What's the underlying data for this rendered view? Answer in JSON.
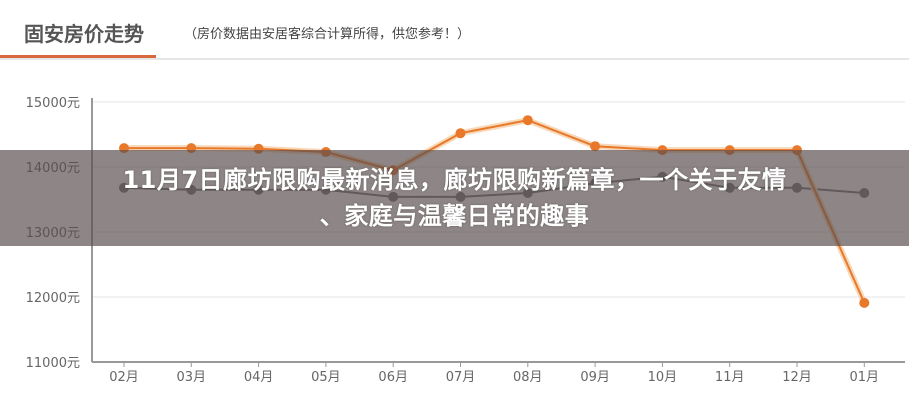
{
  "header": {
    "title": "固安房价走势",
    "subtitle": "（房价数据由安居客综合计算所得，供您参考！）"
  },
  "overlay": {
    "line1": "11月7日廊坊限购最新消息，廊坊限购新篇章，一个关于友情",
    "line2": "、家庭与温馨日常的趣事"
  },
  "chart_data": {
    "type": "line",
    "title": "固安房价走势",
    "categories": [
      "02月",
      "03月",
      "04月",
      "05月",
      "06月",
      "07月",
      "08月",
      "09月",
      "10月",
      "11月",
      "12月",
      "01月"
    ],
    "y_ticks": [
      "15000元",
      "14000元",
      "13000元",
      "12000元",
      "11000元"
    ],
    "ylim": [
      11000,
      15000
    ],
    "grid": true,
    "series": [
      {
        "color": "#e8782a",
        "values": [
          14290,
          14290,
          14280,
          14230,
          13950,
          14520,
          14720,
          14320,
          14260,
          14260,
          14260,
          11910
        ]
      },
      {
        "color": "#777777",
        "values": [
          13680,
          13650,
          13650,
          13650,
          13540,
          13540,
          13600,
          13750,
          13850,
          13680,
          13680,
          13600
        ]
      }
    ]
  }
}
